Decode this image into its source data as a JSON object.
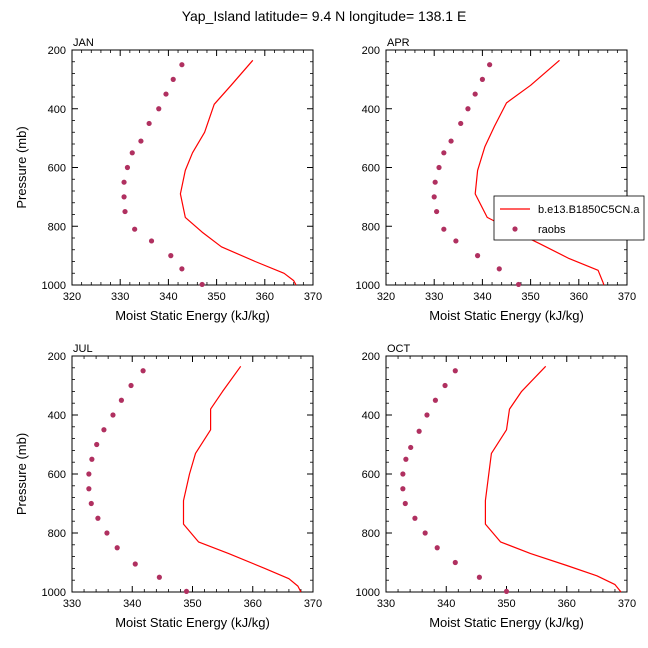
{
  "figure_title": "Yap_Island  latitude= 9.4 N longitude= 138.1 E",
  "chart_data": [
    {
      "type": "line",
      "title": "JAN",
      "xlabel": "Moist Static Energy (kJ/kg)",
      "ylabel": "Pressure (mb)",
      "xlim": [
        320,
        370
      ],
      "ylim": [
        200,
        1000
      ],
      "y_inverted": true,
      "xticks": [
        "320",
        "330",
        "340",
        "350",
        "360",
        "370"
      ],
      "yticks": [
        "200",
        "400",
        "600",
        "800",
        "1000"
      ],
      "series": [
        {
          "name": "b.e13.B1850C5CN.a",
          "style": "line",
          "color": "#ff0000",
          "points": [
            [
              357.5,
              235
            ],
            [
              353,
              320
            ],
            [
              349.5,
              385
            ],
            [
              347.5,
              480
            ],
            [
              345,
              550
            ],
            [
              343.5,
              610
            ],
            [
              342.5,
              690
            ],
            [
              343.5,
              770
            ],
            [
              347,
              820
            ],
            [
              351,
              870
            ],
            [
              358,
              920
            ],
            [
              364,
              960
            ],
            [
              366,
              985
            ],
            [
              366.5,
              1000
            ]
          ]
        },
        {
          "name": "raobs",
          "style": "markers",
          "color": "#b03060",
          "points": [
            [
              342.8,
              250
            ],
            [
              341,
              300
            ],
            [
              339.5,
              350
            ],
            [
              338,
              400
            ],
            [
              336,
              450
            ],
            [
              334.3,
              510
            ],
            [
              332.5,
              550
            ],
            [
              331.5,
              600
            ],
            [
              330.8,
              650
            ],
            [
              330.8,
              700
            ],
            [
              331,
              750
            ],
            [
              333,
              810
            ],
            [
              336.5,
              850
            ],
            [
              340.5,
              900
            ],
            [
              342.8,
              945
            ],
            [
              347,
              998
            ]
          ]
        }
      ]
    },
    {
      "type": "line",
      "title": "APR",
      "xlabel": "Moist Static Energy (kJ/kg)",
      "ylabel": "",
      "xlim": [
        320,
        370
      ],
      "ylim": [
        200,
        1000
      ],
      "y_inverted": true,
      "xticks": [
        "320",
        "330",
        "340",
        "350",
        "360",
        "370"
      ],
      "yticks": [
        "200",
        "400",
        "600",
        "800",
        "1000"
      ],
      "legend": {
        "position": "right",
        "entries": [
          "b.e13.B1850C5CN.a",
          "raobs"
        ]
      },
      "series": [
        {
          "name": "b.e13.B1850C5CN.a",
          "style": "line",
          "color": "#ff0000",
          "points": [
            [
              356,
              235
            ],
            [
              350,
              320
            ],
            [
              345,
              380
            ],
            [
              342.5,
              460
            ],
            [
              340.5,
              530
            ],
            [
              339,
              610
            ],
            [
              338.5,
              690
            ],
            [
              341,
              770
            ],
            [
              347,
              820
            ],
            [
              352,
              860
            ],
            [
              358,
              910
            ],
            [
              364,
              950
            ],
            [
              365,
              990
            ],
            [
              365.2,
              1000
            ]
          ]
        },
        {
          "name": "raobs",
          "style": "markers",
          "color": "#b03060",
          "points": [
            [
              341.5,
              250
            ],
            [
              340,
              300
            ],
            [
              338.5,
              350
            ],
            [
              337,
              400
            ],
            [
              335.5,
              450
            ],
            [
              333.5,
              510
            ],
            [
              332,
              550
            ],
            [
              331,
              600
            ],
            [
              330.2,
              650
            ],
            [
              330,
              700
            ],
            [
              330.5,
              750
            ],
            [
              332,
              810
            ],
            [
              334.5,
              850
            ],
            [
              339,
              900
            ],
            [
              343.5,
              945
            ],
            [
              347.5,
              998
            ]
          ]
        }
      ]
    },
    {
      "type": "line",
      "title": "JUL",
      "xlabel": "Moist Static Energy (kJ/kg)",
      "ylabel": "Pressure (mb)",
      "xlim": [
        330,
        370
      ],
      "ylim": [
        200,
        1000
      ],
      "y_inverted": true,
      "xticks": [
        "330",
        "340",
        "350",
        "360",
        "370"
      ],
      "yticks": [
        "200",
        "400",
        "600",
        "800",
        "1000"
      ],
      "series": [
        {
          "name": "b.e13.B1850C5CN.a",
          "style": "line",
          "color": "#ff0000",
          "points": [
            [
              358,
              235
            ],
            [
              355,
              320
            ],
            [
              353,
              380
            ],
            [
              353,
              450
            ],
            [
              350.5,
              530
            ],
            [
              349.5,
              600
            ],
            [
              348.5,
              690
            ],
            [
              348.5,
              770
            ],
            [
              351,
              830
            ],
            [
              356,
              870
            ],
            [
              362,
              920
            ],
            [
              366,
              955
            ],
            [
              367.5,
              980
            ],
            [
              368,
              1000
            ]
          ]
        },
        {
          "name": "raobs",
          "style": "markers",
          "color": "#b03060",
          "points": [
            [
              341.8,
              250
            ],
            [
              339.8,
              300
            ],
            [
              338.2,
              350
            ],
            [
              336.8,
              400
            ],
            [
              335.3,
              450
            ],
            [
              334.1,
              500
            ],
            [
              333.3,
              550
            ],
            [
              332.8,
              600
            ],
            [
              332.8,
              650
            ],
            [
              333.2,
              700
            ],
            [
              334.3,
              750
            ],
            [
              335.8,
              800
            ],
            [
              337.5,
              850
            ],
            [
              340.5,
              905
            ],
            [
              344.5,
              950
            ],
            [
              349,
              998
            ]
          ]
        }
      ]
    },
    {
      "type": "line",
      "title": "OCT",
      "xlabel": "Moist Static Energy (kJ/kg)",
      "ylabel": "",
      "xlim": [
        330,
        370
      ],
      "ylim": [
        200,
        1000
      ],
      "y_inverted": true,
      "xticks": [
        "330",
        "340",
        "350",
        "360",
        "370"
      ],
      "yticks": [
        "200",
        "400",
        "600",
        "800",
        "1000"
      ],
      "series": [
        {
          "name": "b.e13.B1850C5CN.a",
          "style": "line",
          "color": "#ff0000",
          "points": [
            [
              356.5,
              235
            ],
            [
              352.5,
              320
            ],
            [
              350.5,
              380
            ],
            [
              350,
              450
            ],
            [
              347.5,
              530
            ],
            [
              347,
              610
            ],
            [
              346.5,
              690
            ],
            [
              346.5,
              770
            ],
            [
              349,
              830
            ],
            [
              354,
              870
            ],
            [
              360,
              910
            ],
            [
              365,
              945
            ],
            [
              368,
              975
            ],
            [
              369,
              1000
            ]
          ]
        },
        {
          "name": "raobs",
          "style": "markers",
          "color": "#b03060",
          "points": [
            [
              341.5,
              250
            ],
            [
              339.8,
              300
            ],
            [
              338.2,
              350
            ],
            [
              336.8,
              400
            ],
            [
              335.5,
              455
            ],
            [
              334.1,
              510
            ],
            [
              333.3,
              550
            ],
            [
              332.8,
              600
            ],
            [
              332.8,
              650
            ],
            [
              333.2,
              700
            ],
            [
              334.8,
              750
            ],
            [
              336.5,
              800
            ],
            [
              338.5,
              850
            ],
            [
              341.5,
              900
            ],
            [
              345.5,
              950
            ],
            [
              350,
              998
            ]
          ]
        }
      ]
    }
  ]
}
